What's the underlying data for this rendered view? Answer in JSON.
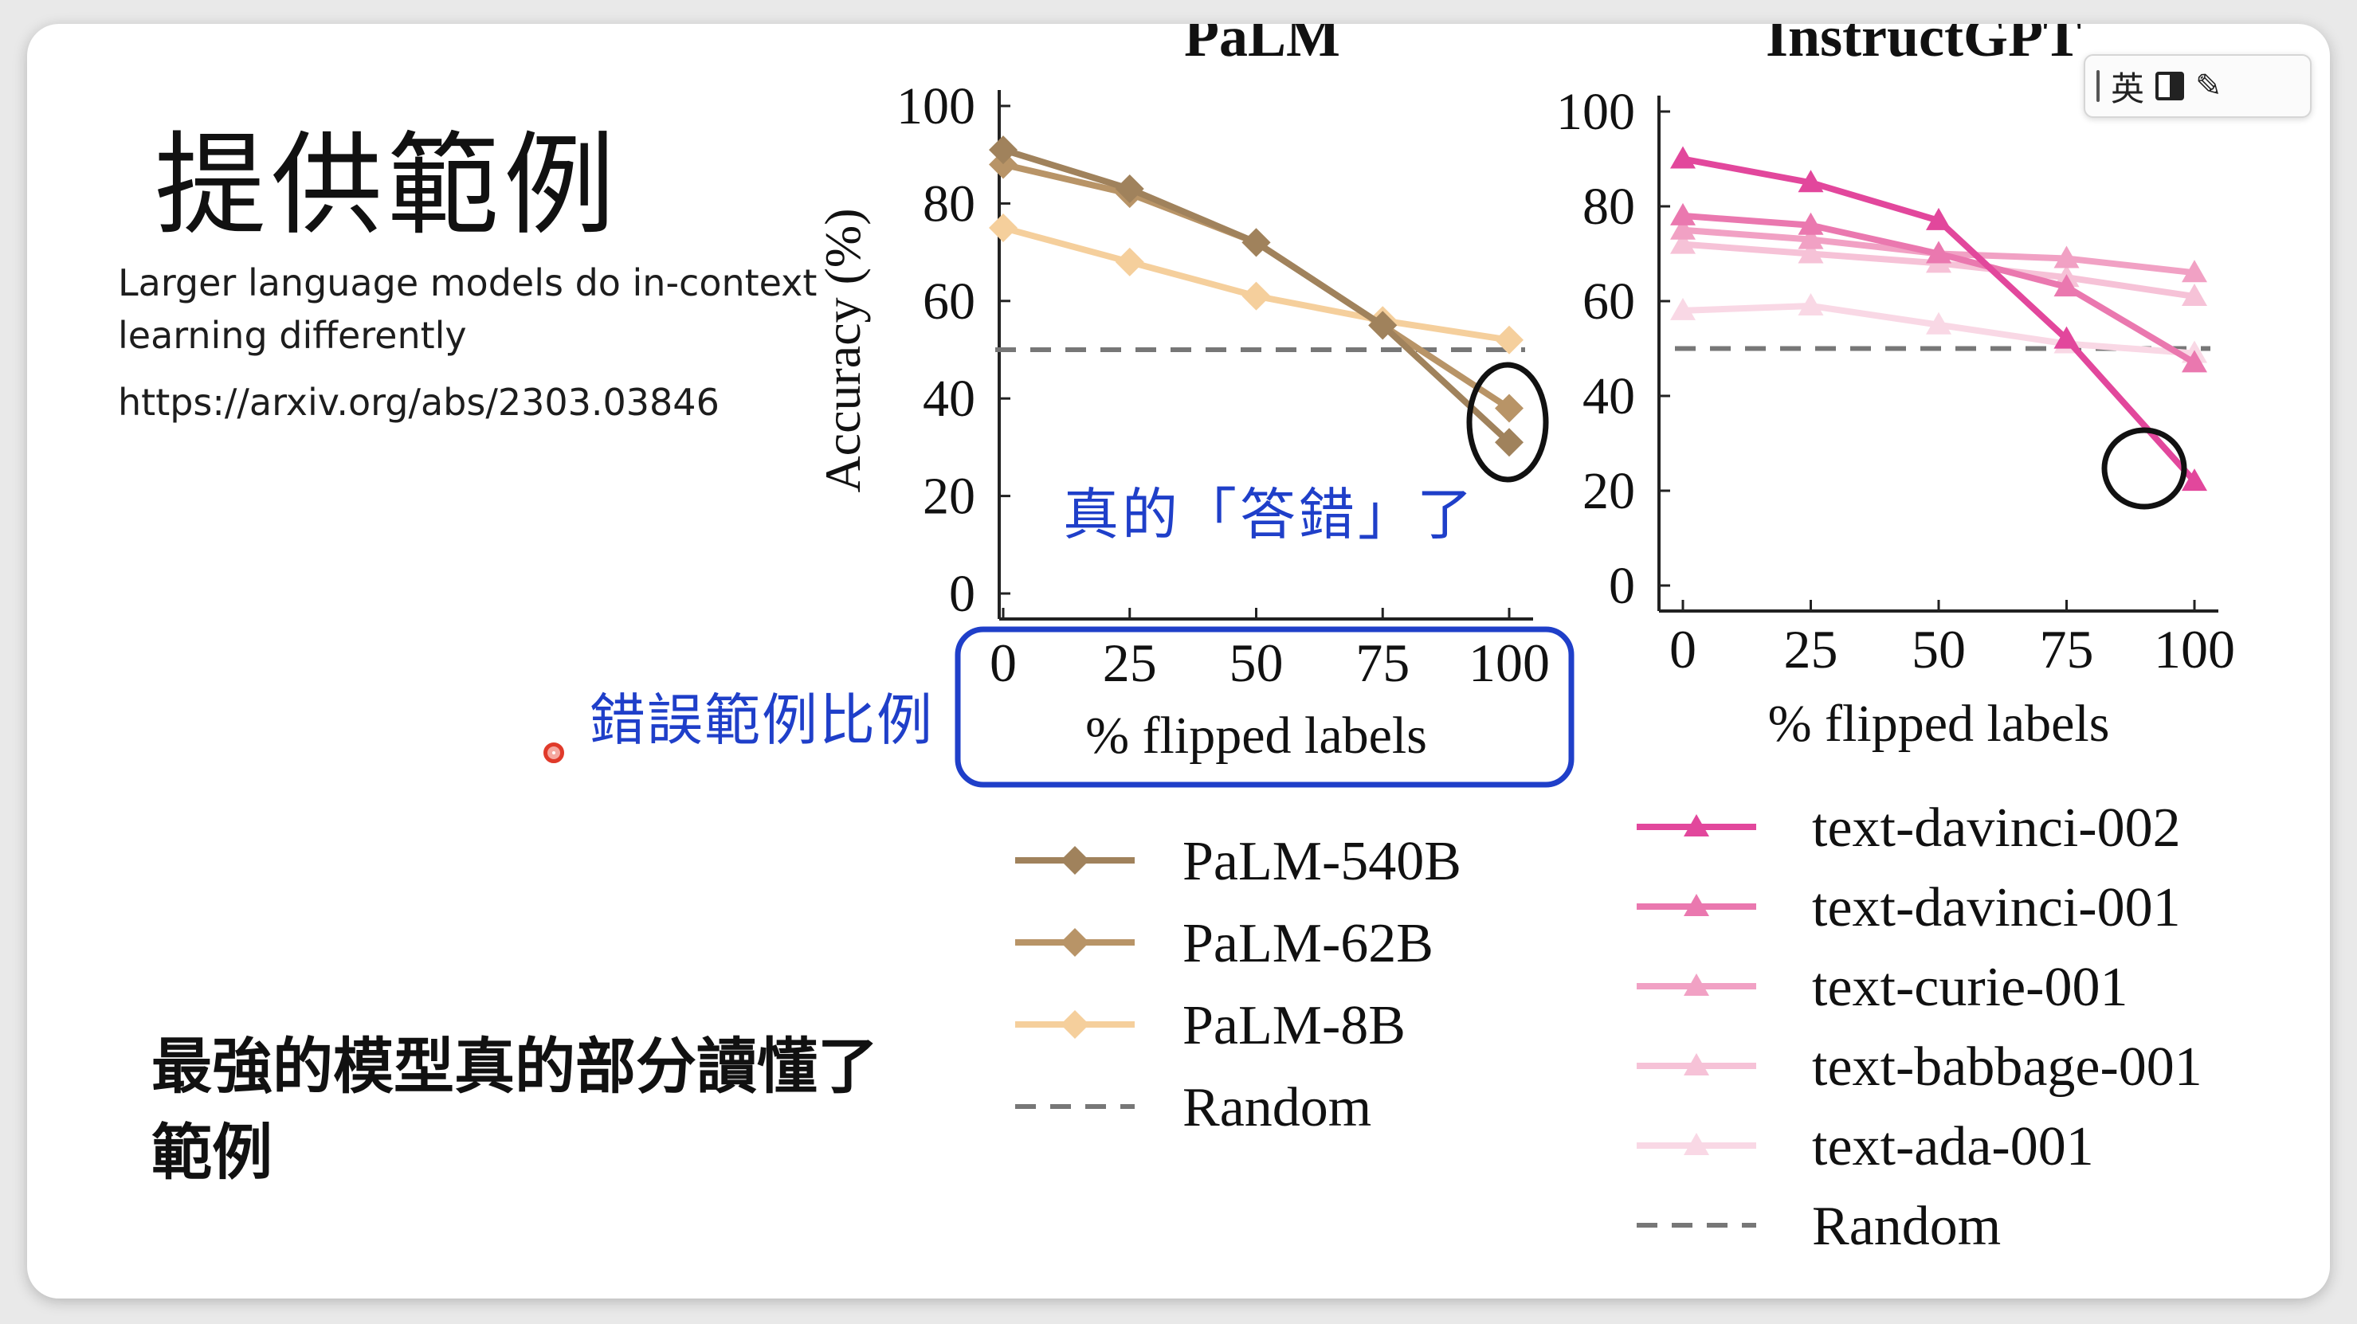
{
  "slide": {
    "title": "提供範例",
    "paper_title": "Larger language models do in-context learning differently",
    "paper_url": "https://arxiv.org/abs/2303.03846",
    "note": "最強的模型真的部分讀懂了範例"
  },
  "annotations": {
    "answer_wrong": "真的「答錯」了",
    "ratio_label": "錯誤範例比例",
    "annotation_color": "#1f3fc9"
  },
  "ime": {
    "language": "英",
    "layout_icon": "half-width-icon",
    "tool_icon": "tool-icon"
  },
  "chart_data": [
    {
      "type": "line",
      "title": "PaLM",
      "xlabel": "% flipped labels",
      "ylabel": "Accuracy (%)",
      "x": [
        0,
        25,
        50,
        75,
        100
      ],
      "ylim": [
        0,
        100
      ],
      "yticks": [
        0,
        20,
        40,
        60,
        80,
        100
      ],
      "marker": "diamond",
      "series": [
        {
          "name": "PaLM-540B",
          "color": "#a0825c",
          "values": [
            91,
            83,
            72,
            55,
            31
          ]
        },
        {
          "name": "PaLM-62B",
          "color": "#b89467",
          "values": [
            88,
            82,
            72,
            55,
            38
          ]
        },
        {
          "name": "PaLM-8B",
          "color": "#f5cf9c",
          "values": [
            75,
            68,
            61,
            56,
            52
          ]
        }
      ],
      "baseline": {
        "name": "Random",
        "value": 50,
        "color": "#777777"
      },
      "highlight": "x=100",
      "legend_placement": "below"
    },
    {
      "type": "line",
      "title": "InstructGPT",
      "xlabel": "% flipped labels",
      "ylabel": "",
      "x": [
        0,
        25,
        50,
        75,
        100
      ],
      "ylim": [
        0,
        100
      ],
      "yticks": [
        0,
        20,
        40,
        60,
        80,
        100
      ],
      "marker": "triangle",
      "series": [
        {
          "name": "text-davinci-002",
          "color": "#e2479c",
          "values": [
            90,
            85,
            77,
            52,
            22
          ]
        },
        {
          "name": "text-davinci-001",
          "color": "#ea78af",
          "values": [
            78,
            76,
            70,
            63,
            47
          ]
        },
        {
          "name": "text-curie-001",
          "color": "#f1a1c4",
          "values": [
            75,
            73,
            70,
            69,
            66
          ]
        },
        {
          "name": "text-babbage-001",
          "color": "#f6c2d7",
          "values": [
            72,
            70,
            68,
            65,
            61
          ]
        },
        {
          "name": "text-ada-001",
          "color": "#f9d8e5",
          "values": [
            58,
            59,
            55,
            51,
            49
          ]
        }
      ],
      "baseline": {
        "name": "Random",
        "value": 50,
        "color": "#777777"
      },
      "highlight": "x=100",
      "legend_placement": "below"
    }
  ]
}
